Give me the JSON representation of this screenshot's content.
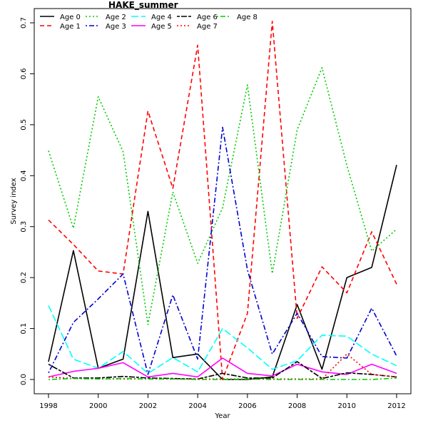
{
  "chart_data": {
    "type": "line",
    "title": "HAKE_summer",
    "xlabel": "Year",
    "ylabel": "Survey index",
    "xlim": [
      1998,
      2012
    ],
    "ylim": [
      0,
      0.72
    ],
    "x_ticks": [
      1998,
      2000,
      2002,
      2004,
      2006,
      2008,
      2010,
      2012
    ],
    "y_ticks": [
      0.0,
      0.1,
      0.2,
      0.3,
      0.4,
      0.5,
      0.6,
      0.7
    ],
    "y_tick_labels": [
      "0.0",
      "0.1",
      "0.2",
      "0.3",
      "0.4",
      "0.5",
      "0.6",
      "0.7"
    ],
    "grid": false,
    "legend_position": "top-left",
    "x": [
      1998,
      1999,
      2000,
      2001,
      2002,
      2003,
      2004,
      2005,
      2006,
      2007,
      2008,
      2009,
      2010,
      2011,
      2012
    ],
    "series": [
      {
        "name": "Age 0",
        "color": "#000000",
        "dash": "solid",
        "values": [
          0.035,
          0.253,
          0.022,
          0.04,
          0.33,
          0.043,
          0.05,
          0.0,
          0.0,
          0.005,
          0.147,
          0.02,
          0.2,
          0.22,
          0.421
        ]
      },
      {
        "name": "Age 1",
        "color": "#ff0000",
        "dash": "dashed",
        "values": [
          0.313,
          0.265,
          0.213,
          0.207,
          0.527,
          0.375,
          0.656,
          0.0,
          0.13,
          0.703,
          0.12,
          0.221,
          0.17,
          0.29,
          0.187
        ]
      },
      {
        "name": "Age 2",
        "color": "#00cd00",
        "dash": "dotted",
        "values": [
          0.449,
          0.297,
          0.555,
          0.447,
          0.108,
          0.368,
          0.228,
          0.337,
          0.578,
          0.208,
          0.49,
          0.612,
          0.42,
          0.252,
          0.295
        ]
      },
      {
        "name": "Age 3",
        "color": "#0000cd",
        "dash": "dotdash",
        "values": [
          0.013,
          0.112,
          0.158,
          0.207,
          0.01,
          0.166,
          0.04,
          0.495,
          0.215,
          0.05,
          0.13,
          0.045,
          0.042,
          0.14,
          0.046
        ]
      },
      {
        "name": "Age 4",
        "color": "#00ffff",
        "dash": "longdash",
        "values": [
          0.145,
          0.04,
          0.022,
          0.055,
          0.012,
          0.043,
          0.015,
          0.1,
          0.062,
          0.02,
          0.037,
          0.087,
          0.085,
          0.05,
          0.027
        ]
      },
      {
        "name": "Age 5",
        "color": "#ff00ff",
        "dash": "solid",
        "values": [
          0.005,
          0.016,
          0.022,
          0.033,
          0.005,
          0.012,
          0.005,
          0.042,
          0.012,
          0.007,
          0.03,
          0.015,
          0.01,
          0.03,
          0.012
        ]
      },
      {
        "name": "Age 6",
        "color": "#000000",
        "dash": "twodash",
        "values": [
          0.03,
          0.003,
          0.003,
          0.006,
          0.003,
          0.002,
          0.001,
          0.012,
          0.003,
          0.003,
          0.035,
          0.002,
          0.013,
          0.01,
          0.005
        ]
      },
      {
        "name": "Age 7",
        "color": "#ff0000",
        "dash": "dotted",
        "values": [
          0.005,
          0.002,
          0.001,
          0.001,
          0.001,
          0.001,
          0.001,
          0.001,
          0.001,
          0.001,
          0.001,
          0.001,
          0.05,
          0.01,
          0.005
        ]
      },
      {
        "name": "Age 8",
        "color": "#00cd00",
        "dash": "dotdash",
        "values": [
          0.0,
          0.002,
          0.001,
          0.002,
          0.001,
          0.001,
          0.0,
          0.0,
          0.001,
          0.0,
          0.0,
          0.0,
          0.0,
          0.0,
          0.003
        ]
      }
    ]
  }
}
